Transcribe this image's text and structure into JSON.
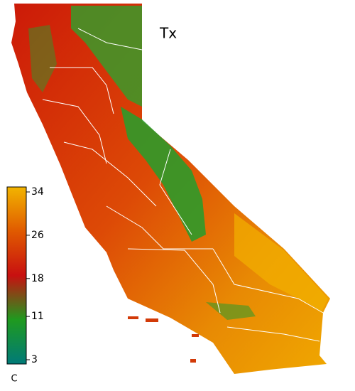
{
  "title": "Tx",
  "colorbar": {
    "label": "C",
    "lim": [
      3,
      34
    ],
    "ticks": [
      34,
      26,
      18,
      11,
      3
    ],
    "colors": [
      "#007a78",
      "#1f9a1f",
      "#c81010",
      "#e05a00",
      "#f2b400"
    ]
  }
}
